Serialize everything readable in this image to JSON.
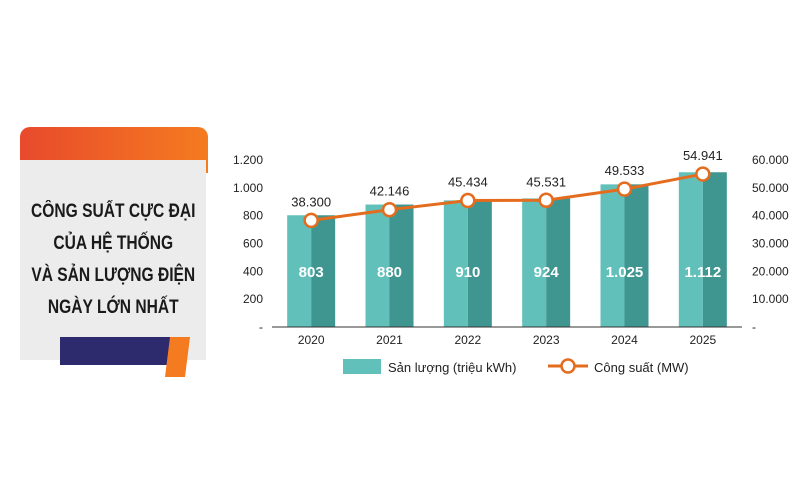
{
  "title_lines": [
    "CÔNG SUẤT CỰC ĐẠI",
    "CỦA HỆ THỐNG",
    "VÀ SẢN LƯỢNG ĐIỆN",
    "NGÀY LỚN NHẤT"
  ],
  "colors": {
    "bar_front": "#62c0bb",
    "bar_side": "#3f9590",
    "line": "#e46c1e",
    "marker_fill": "#ffffff",
    "accent_orange": "#f47b20",
    "accent_navy": "#2e2a6e"
  },
  "chart_data": {
    "type": "bar",
    "categories": [
      "2020",
      "2021",
      "2022",
      "2023",
      "2024",
      "2025"
    ],
    "series": [
      {
        "name": "Sản lượng (triệu kWh)",
        "type": "bar",
        "axis": "left",
        "values": [
          803,
          880,
          910,
          924,
          1025,
          1112
        ],
        "labels": [
          "803",
          "880",
          "910",
          "924",
          "1.025",
          "1.112"
        ]
      },
      {
        "name": "Công suất (MW)",
        "type": "line",
        "axis": "right",
        "values": [
          38300,
          42146,
          45434,
          45531,
          49533,
          54941
        ],
        "labels": [
          "38.300",
          "42.146",
          "45.434",
          "45.531",
          "49.533",
          "54.941"
        ]
      }
    ],
    "y_left": {
      "ylim": [
        0,
        1200
      ],
      "ticks": [
        0,
        200,
        400,
        600,
        800,
        1000,
        1200
      ],
      "tick_labels": [
        "-",
        "200",
        "400",
        "600",
        "800",
        "1.000",
        "1.200"
      ]
    },
    "y_right": {
      "ylim": [
        0,
        60000
      ],
      "ticks": [
        0,
        10000,
        20000,
        30000,
        40000,
        50000,
        60000
      ],
      "tick_labels": [
        "-",
        "10.000",
        "20.000",
        "30.000",
        "40.000",
        "50.000",
        "60.000"
      ]
    },
    "grid": false,
    "legend": "bottom"
  }
}
